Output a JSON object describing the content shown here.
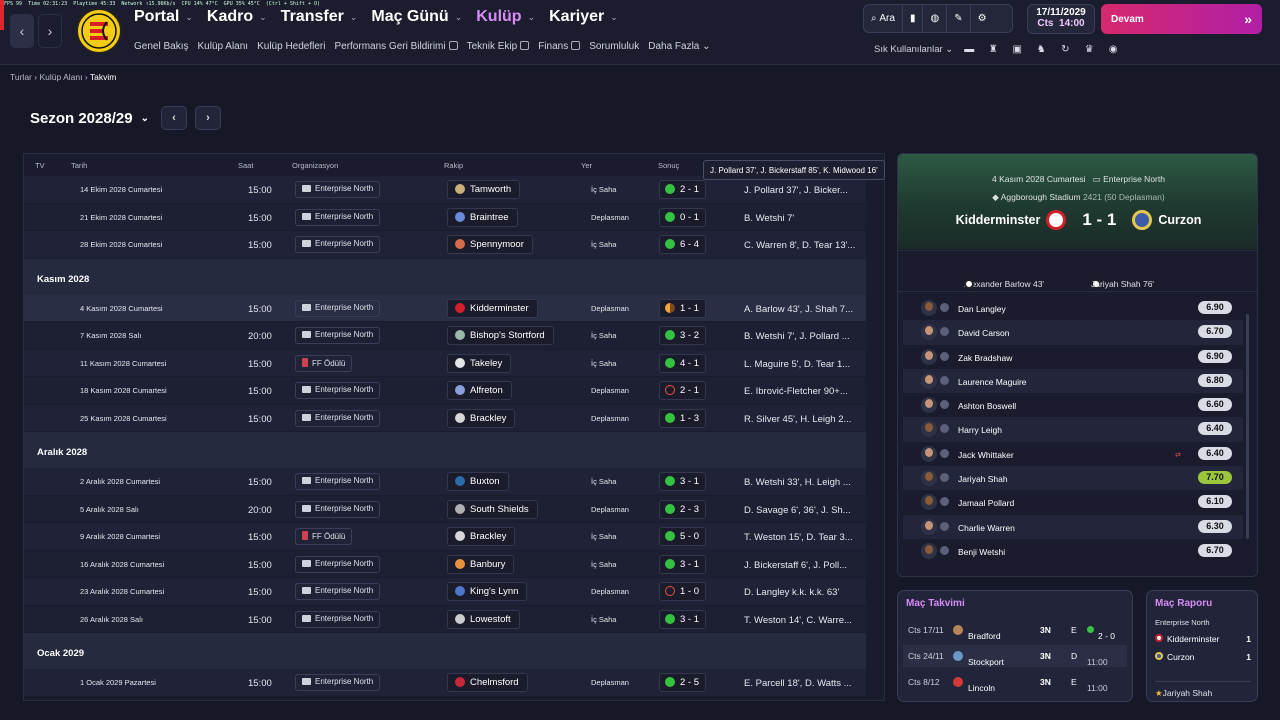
{
  "topbar": {
    "perf": [
      "FPS 99",
      "Time 02:31:23",
      "Playtime 45:33",
      "Network ↑15.96Kb/s",
      "CPU 14% 47°C",
      "GPU 35% 45°C",
      "(Ctrl + Shift + O)"
    ],
    "nav": [
      {
        "label": "Portal",
        "active": false
      },
      {
        "label": "Kadro",
        "active": false
      },
      {
        "label": "Transfer",
        "active": false
      },
      {
        "label": "Maç Günü",
        "active": false
      },
      {
        "label": "Kulüp",
        "active": true
      },
      {
        "label": "Kariyer",
        "active": false
      }
    ],
    "subnav": [
      {
        "label": "Genel Bakış",
        "ext": false
      },
      {
        "label": "Kulüp Alanı",
        "ext": false
      },
      {
        "label": "Kulüp Hedefleri",
        "ext": false
      },
      {
        "label": "Performans Geri Bildirimi",
        "ext": true
      },
      {
        "label": "Teknik Ekip",
        "ext": true
      },
      {
        "label": "Finans",
        "ext": true
      },
      {
        "label": "Sorumluluk",
        "ext": false
      },
      {
        "label": "Daha Fazla",
        "ext": false
      }
    ],
    "search_label": "Ara",
    "date": "17/11/2029",
    "time_day": "Cts",
    "time": "14:00",
    "continue_label": "Devam",
    "quick_label": "Sık Kullanılanlar"
  },
  "breadcrumb": [
    "Turlar",
    "Kulüp Alanı",
    "Takvim"
  ],
  "season": "Sezon 2028/29",
  "table": {
    "headers": [
      "TV",
      "Tarih",
      "Saat",
      "Organizasyon",
      "Rakip",
      "Yer",
      "Sonuç"
    ],
    "groups": [
      {
        "month": "",
        "rows": [
          {
            "date": "14 Ekim 2028 Cumartesi",
            "time": "15:00",
            "comp": "Enterprise North",
            "opp": "Tamworth",
            "venue": "İç Saha",
            "res": "W",
            "score": "2 - 1",
            "scorers": "J. Pollard 37', J. Bicker..."
          },
          {
            "date": "21 Ekim 2028 Cumartesi",
            "time": "15:00",
            "comp": "Enterprise North",
            "opp": "Braintree",
            "venue": "Deplasman",
            "res": "W",
            "score": "0 - 1",
            "scorers": "B. Wetshi 7'"
          },
          {
            "date": "28 Ekim 2028 Cumartesi",
            "time": "15:00",
            "comp": "Enterprise North",
            "opp": "Spennymoor",
            "venue": "İç Saha",
            "res": "W",
            "score": "6 - 4",
            "scorers": "C. Warren 8', D. Tear 13'..."
          }
        ]
      },
      {
        "month": "Kasım 2028",
        "rows": [
          {
            "date": "4 Kasım 2028 Cumartesi",
            "time": "15:00",
            "comp": "Enterprise North",
            "opp": "Kidderminster",
            "venue": "Deplasman",
            "res": "D",
            "score": "1 - 1",
            "scorers": "A. Barlow 43', J. Shah 7...",
            "hl": true
          },
          {
            "date": "7 Kasım 2028 Salı",
            "time": "20:00",
            "comp": "Enterprise North",
            "opp": "Bishop's Stortford",
            "venue": "İç Saha",
            "res": "W",
            "score": "3 - 2",
            "scorers": "B. Wetshi 7', J. Pollard ..."
          },
          {
            "date": "11 Kasım 2028 Cumartesi",
            "time": "15:00",
            "comp": "FF Ödülü",
            "opp": "Takeley",
            "venue": "İç Saha",
            "res": "W",
            "score": "4 - 1",
            "scorers": "L. Maguire 5', D. Tear 1..."
          },
          {
            "date": "18 Kasım 2028 Cumartesi",
            "time": "15:00",
            "comp": "Enterprise North",
            "opp": "Alfreton",
            "venue": "Deplasman",
            "res": "L",
            "score": "2 - 1",
            "scorers": "E. Ibrović-Fletcher 90+..."
          },
          {
            "date": "25 Kasım 2028 Cumartesi",
            "time": "15:00",
            "comp": "Enterprise North",
            "opp": "Brackley",
            "venue": "Deplasman",
            "res": "W",
            "score": "1 - 3",
            "scorers": "R. Silver 45', H. Leigh 2..."
          }
        ]
      },
      {
        "month": "Aralık 2028",
        "rows": [
          {
            "date": "2 Aralık 2028 Cumartesi",
            "time": "15:00",
            "comp": "Enterprise North",
            "opp": "Buxton",
            "venue": "İç Saha",
            "res": "W",
            "score": "3 - 1",
            "scorers": "B. Wetshi 33', H. Leigh ..."
          },
          {
            "date": "5 Aralık 2028 Salı",
            "time": "20:00",
            "comp": "Enterprise North",
            "opp": "South Shields",
            "venue": "Deplasman",
            "res": "W",
            "score": "2 - 3",
            "scorers": "D. Savage 6', 36', J. Sh..."
          },
          {
            "date": "9 Aralık 2028 Cumartesi",
            "time": "15:00",
            "comp": "FF Ödülü",
            "opp": "Brackley",
            "venue": "İç Saha",
            "res": "W",
            "score": "5 - 0",
            "scorers": "T. Weston 15', D. Tear 3..."
          },
          {
            "date": "16 Aralık 2028 Cumartesi",
            "time": "15:00",
            "comp": "Enterprise North",
            "opp": "Banbury",
            "venue": "İç Saha",
            "res": "W",
            "score": "3 - 1",
            "scorers": "J. Bickerstaff 6', J. Poll..."
          },
          {
            "date": "23 Aralık 2028 Cumartesi",
            "time": "15:00",
            "comp": "Enterprise North",
            "opp": "King's Lynn",
            "venue": "Deplasman",
            "res": "L",
            "score": "1 - 0",
            "scorers": "D. Langley k.k. k.k.  63'"
          },
          {
            "date": "26 Aralık 2028 Salı",
            "time": "15:00",
            "comp": "Enterprise North",
            "opp": "Lowestoft",
            "venue": "İç Saha",
            "res": "W",
            "score": "3 - 1",
            "scorers": "T. Weston 14', C. Warre..."
          }
        ]
      },
      {
        "month": "Ocak 2029",
        "rows": [
          {
            "date": "1 Ocak 2029 Pazartesi",
            "time": "15:00",
            "comp": "Enterprise North",
            "opp": "Chelmsford",
            "venue": "Deplasman",
            "res": "W",
            "score": "2 - 5",
            "scorers": "E. Parcell 18', D. Watts ..."
          }
        ]
      }
    ],
    "tooltip": "J. Pollard 37', J. Bickerstaff 85', K. Midwood 16'"
  },
  "match": {
    "date": "4 Kasım 2028 Cumartesi",
    "competition": "Enterprise North",
    "stadium": "Aggborough Stadium",
    "attendance": "2421",
    "away_fans": "(50 Deplasman)",
    "home": "Kidderminster",
    "away": "Curzon",
    "score": "1 - 1",
    "home_scorer": "Alexander Barlow 43'",
    "away_scorer": "Jariyah Shah 76'",
    "players": [
      {
        "name": "Dan Langley",
        "rating": "6.90"
      },
      {
        "name": "David Carson",
        "rating": "6.70"
      },
      {
        "name": "Zak Bradshaw",
        "rating": "6.90"
      },
      {
        "name": "Laurence Maguire",
        "rating": "6.80"
      },
      {
        "name": "Ashton Boswell",
        "rating": "6.60"
      },
      {
        "name": "Harry Leigh",
        "rating": "6.40"
      },
      {
        "name": "Jack Whittaker",
        "rating": "6.40",
        "sub": "⇄"
      },
      {
        "name": "Jariyah Shah",
        "rating": "7.70",
        "best": true
      },
      {
        "name": "Jamaal Pollard",
        "rating": "6.10"
      },
      {
        "name": "Charlie Warren",
        "rating": "6.30"
      },
      {
        "name": "Benji Wetshi",
        "rating": "6.70"
      }
    ]
  },
  "fixtures": {
    "title": "Maç Takvimi",
    "rows": [
      {
        "date": "Cts 17/11",
        "team": "Bradford",
        "tv": "3N",
        "venue": "E",
        "result": "2 - 0"
      },
      {
        "date": "Cts 24/11",
        "team": "Stockport",
        "tv": "3N",
        "venue": "D",
        "result": "11:00"
      },
      {
        "date": "Cts 8/12",
        "team": "Lincoln",
        "tv": "3N",
        "venue": "E",
        "result": "11:00"
      }
    ]
  },
  "report": {
    "title": "Maç Raporu",
    "competition": "Enterprise North",
    "home": "Kidderminster",
    "home_goals": "1",
    "away": "Curzon",
    "away_goals": "1",
    "potm": "Jariyah Shah"
  },
  "colors": {
    "accent": "#d68cf5",
    "continue": "#d6296d",
    "win": "#35c241",
    "loss": "#f0503d",
    "draw": "#f3a23c"
  }
}
